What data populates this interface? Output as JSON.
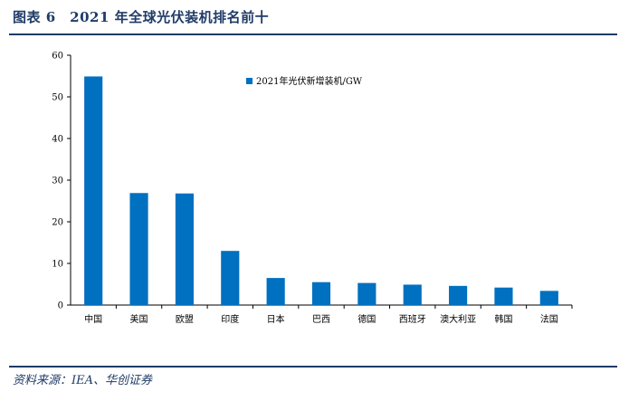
{
  "figure": {
    "title": "图表 6　2021 年全球光伏装机排名前十",
    "source": "资料来源：IEA、华创证券",
    "accent_color": "#1f3b67"
  },
  "chart_data": {
    "type": "bar",
    "categories": [
      "中国",
      "美国",
      "欧盟",
      "印度",
      "日本",
      "巴西",
      "德国",
      "西班牙",
      "澳大利亚",
      "韩国",
      "法国"
    ],
    "series": [
      {
        "name": "2021年光伏新增装机/GW",
        "values": [
          54.9,
          26.9,
          26.8,
          13.0,
          6.5,
          5.5,
          5.3,
          4.9,
          4.6,
          4.2,
          3.4
        ],
        "color": "#0070c0"
      }
    ],
    "ylim": [
      0,
      60
    ],
    "yticks": [
      0,
      10,
      20,
      30,
      40,
      50,
      60
    ],
    "xlabel": "",
    "ylabel": "",
    "grid": false,
    "legend_position": "top-right"
  }
}
